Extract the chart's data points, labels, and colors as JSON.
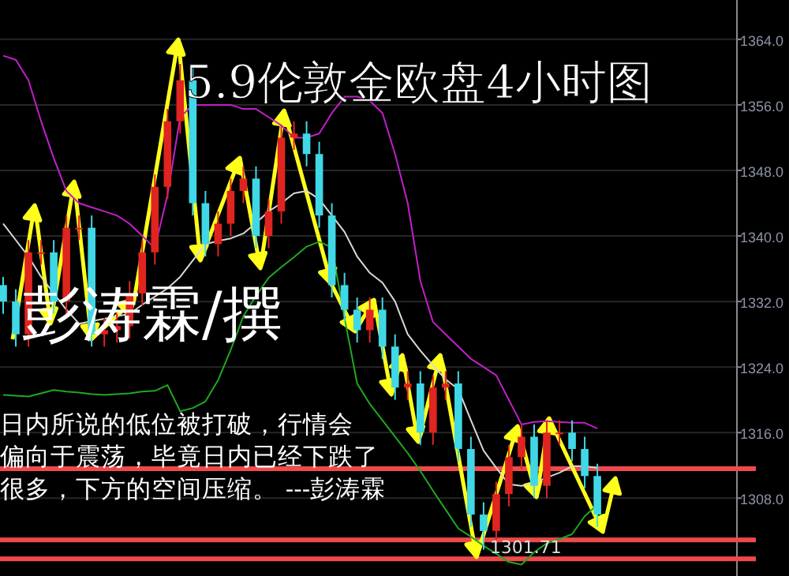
{
  "chart_data": {
    "type": "candlestick",
    "title": "5.9伦敦金欧盘4小时图",
    "annotations": [
      "彭涛霖/撰",
      "日内所说的低位被打破，行情会",
      "偏向于震荡，毕竟日内已经下跌了",
      "很多，下方的空间压缩。   ---彭涛霖",
      {
        "text": "1301.71",
        "y": 1301.71
      }
    ],
    "categories": [
      null,
      null,
      null,
      null,
      null,
      null,
      null,
      null,
      null,
      null,
      null,
      null,
      null,
      null,
      null,
      null,
      null,
      null,
      null,
      null,
      null,
      null,
      null,
      null,
      null,
      null,
      null,
      null,
      null,
      null,
      null,
      null,
      null,
      null,
      null,
      null,
      null,
      null,
      null,
      null,
      null,
      null,
      null,
      null,
      null,
      null,
      null,
      null
    ],
    "ohlc": [
      [
        1334,
        1335,
        1330.5,
        1332
      ],
      [
        1332,
        1333.5,
        1326.5,
        1328
      ],
      [
        1328,
        1339.5,
        1326.5,
        1338
      ],
      [
        1338,
        1339.5,
        1336.5,
        1338
      ],
      [
        1338,
        1339.5,
        1330.5,
        1332
      ],
      [
        1332,
        1342.5,
        1330.5,
        1341
      ],
      [
        1341,
        1342.5,
        1339.5,
        1341
      ],
      [
        1341,
        1342.5,
        1326.5,
        1328
      ],
      [
        1328,
        1330,
        1326.5,
        1328.5
      ],
      [
        1328.5,
        1330.5,
        1327,
        1329
      ],
      [
        1329,
        1334.5,
        1327.5,
        1333
      ],
      [
        1333,
        1339.5,
        1331.5,
        1338
      ],
      [
        1338,
        1347.5,
        1336.5,
        1346
      ],
      [
        1346,
        1355.5,
        1344.5,
        1354
      ],
      [
        1354,
        1361,
        1352.5,
        1359
      ],
      [
        1359,
        1360.5,
        1342.5,
        1344
      ],
      [
        1344,
        1345.5,
        1337.5,
        1339
      ],
      [
        1339,
        1343,
        1337.5,
        1341.5
      ],
      [
        1341.5,
        1347,
        1340,
        1345.5
      ],
      [
        1345.5,
        1348.5,
        1344,
        1347
      ],
      [
        1347,
        1348.5,
        1338.5,
        1340
      ],
      [
        1340,
        1344.5,
        1338.5,
        1343
      ],
      [
        1343,
        1353.5,
        1341.5,
        1352
      ],
      [
        1352,
        1354,
        1350.5,
        1352.5
      ],
      [
        1352.5,
        1354,
        1348.5,
        1350
      ],
      [
        1350,
        1351.5,
        1341,
        1342.5
      ],
      [
        1342.5,
        1344,
        1332.5,
        1334
      ],
      [
        1334,
        1335.5,
        1329.5,
        1331
      ],
      [
        1331,
        1332.5,
        1327,
        1328.5
      ],
      [
        1328.5,
        1332.5,
        1327,
        1331
      ],
      [
        1331,
        1332.5,
        1325,
        1326.5
      ],
      [
        1326.5,
        1328,
        1320,
        1321.5
      ],
      [
        1321.5,
        1323.5,
        1320,
        1322
      ],
      [
        1322,
        1323.5,
        1314.5,
        1316
      ],
      [
        1316,
        1323,
        1314.5,
        1321.5
      ],
      [
        1321.5,
        1323.5,
        1320,
        1322
      ],
      [
        1322,
        1323.5,
        1312.5,
        1314
      ],
      [
        1314,
        1315.5,
        1304.5,
        1306
      ],
      [
        1306,
        1307.5,
        1301.71,
        1304
      ],
      [
        1304,
        1310,
        1302.5,
        1308.5
      ],
      [
        1308.5,
        1314.5,
        1307,
        1313
      ],
      [
        1313,
        1317,
        1311.5,
        1315.5
      ],
      [
        1315.5,
        1317,
        1308,
        1309.5
      ],
      [
        1309.5,
        1317.5,
        1308,
        1316
      ],
      [
        1316,
        1317.5,
        1314.5,
        1316
      ],
      [
        1316,
        1317.5,
        1312.5,
        1314
      ],
      [
        1314,
        1315.5,
        1309.2,
        1310.7
      ],
      [
        1310.7,
        1312.2,
        1304.5,
        1306
      ]
    ],
    "series": [
      {
        "type": "line",
        "color": "#c21fc8",
        "values": [
          1362,
          1361.5,
          1359,
          1354,
          1349.5,
          1345.5,
          1344,
          1343.5,
          1343,
          1342.5,
          1341.5,
          1340,
          1338.5,
          1345,
          1354.5,
          1356,
          1356,
          1356,
          1356,
          1355.5,
          1355.5,
          1354.5,
          1353.5,
          1352,
          1352,
          1352.5,
          1355,
          1357,
          1357,
          1356.5,
          1355,
          1350,
          1344,
          1334.5,
          1329.5,
          1328,
          1326.5,
          1325,
          1324,
          1323,
          1320,
          1317,
          1317.3,
          1317.4,
          1317.3,
          1317.2,
          1317.2,
          1316.5
        ]
      },
      {
        "type": "line",
        "color": "#d8d8d8",
        "values": [
          1341.5,
          1339.5,
          1337.5,
          1335,
          1333,
          1331,
          1329.3,
          1329.6,
          1329.9,
          1330.2,
          1330.5,
          1331.6,
          1332.6,
          1333.6,
          1335,
          1337,
          1339,
          1339.4,
          1339.7,
          1340.3,
          1341.6,
          1343,
          1344,
          1345.2,
          1345.5,
          1344.5,
          1342.5,
          1340.5,
          1337.5,
          1335.5,
          1334.3,
          1332,
          1328,
          1326,
          1324.2,
          1322.5,
          1321.3,
          1317.5,
          1313.8,
          1311.7,
          1309.7,
          1309.5,
          1309.9,
          1310.5,
          1311.1,
          1311.9,
          1311.9,
          1311.7
        ]
      },
      {
        "type": "line",
        "color": "#1fa81f",
        "values": [
          1320.6,
          1320.5,
          1320.4,
          1320.8,
          1321.2,
          1321,
          1320.9,
          1320.7,
          1320.6,
          1320.7,
          1320.8,
          1321,
          1321.1,
          1321.8,
          1318.6,
          1319,
          1319.8,
          1322.4,
          1326.1,
          1330.2,
          1332.7,
          1334.9,
          1336.2,
          1337.4,
          1338.7,
          1339.3,
          1338.6,
          1330,
          1322,
          1319.5,
          1317.5,
          1315.5,
          1313.5,
          1311.3,
          1308.9,
          1306.6,
          1304.3,
          1303.3,
          1302.2,
          1301.2,
          1300.2,
          1299.9,
          1301.4,
          1302.5,
          1303,
          1303.6,
          1305.8,
          1307.2
        ]
      }
    ],
    "ylim": [
      1298.5,
      1368.8
    ],
    "yticks": [
      {
        "value": 1364,
        "label": "1364.0"
      },
      {
        "value": 1356,
        "label": "1356.0"
      },
      {
        "value": 1348,
        "label": "1348.0"
      },
      {
        "value": 1340,
        "label": "1340.0"
      },
      {
        "value": 1332,
        "label": "1332.0"
      },
      {
        "value": 1324,
        "label": "1324.0"
      },
      {
        "value": 1316,
        "label": "1316.0"
      },
      {
        "value": 1308,
        "label": "1308.0"
      }
    ],
    "grid": "y",
    "ref_lines": [
      {
        "axis": "y",
        "value": 1311.6,
        "color": "#f0494b"
      },
      {
        "axis": "y",
        "value": 1302.9,
        "color": "#f0494b"
      },
      {
        "axis": "y",
        "value": 1300.6,
        "color": "#f0494b"
      }
    ]
  }
}
